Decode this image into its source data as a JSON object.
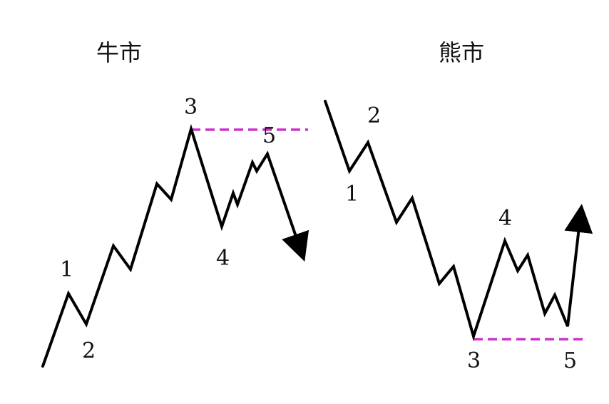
{
  "colors": {
    "wave": "#000000",
    "reference": "#cc33cc",
    "background": "#ffffff"
  },
  "bull": {
    "title": "牛市",
    "labels": [
      "1",
      "2",
      "3",
      "4",
      "5"
    ]
  },
  "bear": {
    "title": "熊市",
    "labels": [
      "1",
      "2",
      "3",
      "4",
      "5"
    ]
  }
}
